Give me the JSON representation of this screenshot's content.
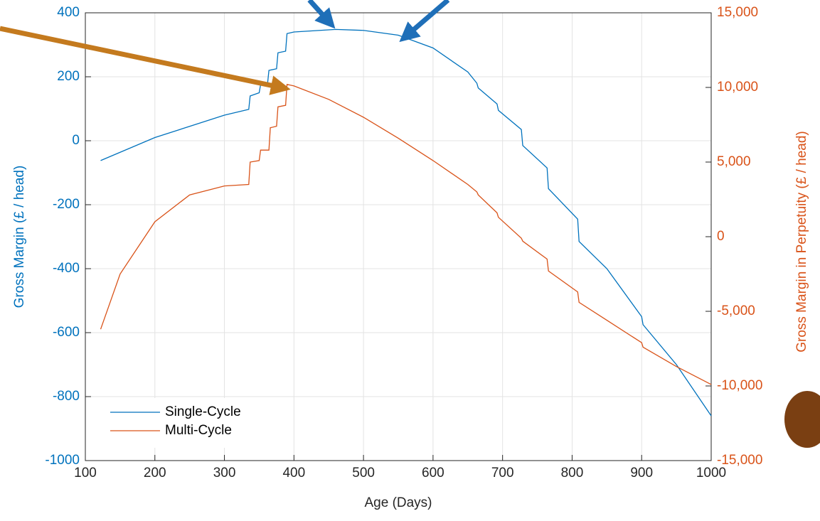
{
  "chart_data": {
    "type": "line",
    "xlabel": "Age (Days)",
    "ylabel": "Gross Margin (£ / head)",
    "y2label": "Gross Margin in Perpetuity (£ / head)",
    "xlim": [
      100,
      1000
    ],
    "xticks": [
      100,
      200,
      300,
      400,
      500,
      600,
      700,
      800,
      900,
      1000
    ],
    "ylim": [
      -1000,
      400
    ],
    "yticks": [
      -1000,
      -800,
      -600,
      -400,
      -200,
      0,
      200,
      400
    ],
    "y2lim": [
      -15000,
      15000
    ],
    "y2ticks": [
      {
        "value": -15000,
        "label": "-15,000"
      },
      {
        "value": -10000,
        "label": "-10,000"
      },
      {
        "value": -5000,
        "label": "-5,000"
      },
      0,
      {
        "value": 5000,
        "label": "5,000"
      },
      {
        "value": 10000,
        "label": "10,000"
      },
      {
        "value": 15000,
        "label": "15,000"
      }
    ],
    "grid": true,
    "legend": "lower left",
    "series": [
      {
        "name": "Single-Cycle",
        "color": "#0072bd",
        "x": [
          122,
          200,
          250,
          300,
          335,
          337,
          350,
          352,
          362,
          364,
          375,
          377,
          388,
          390,
          400,
          460,
          500,
          550,
          600,
          650,
          663,
          665,
          692,
          694,
          727,
          729,
          764,
          766,
          808,
          810,
          850,
          900,
          902,
          950,
          1000
        ],
        "values": [
          -62,
          10,
          45,
          80,
          98,
          140,
          150,
          175,
          178,
          220,
          225,
          275,
          280,
          335,
          340,
          348,
          345,
          330,
          290,
          215,
          180,
          165,
          115,
          95,
          35,
          -15,
          -85,
          -150,
          -245,
          -315,
          -400,
          -550,
          -575,
          -700,
          -860
        ]
      },
      {
        "name": "Multi-Cycle",
        "color": "#d95319",
        "axis": "y2",
        "x": [
          122,
          150,
          200,
          250,
          300,
          335,
          337,
          350,
          352,
          364,
          366,
          375,
          377,
          388,
          390,
          400,
          450,
          500,
          550,
          600,
          650,
          663,
          665,
          692,
          694,
          727,
          729,
          764,
          766,
          808,
          810,
          850,
          900,
          902,
          950,
          1000
        ],
        "values": [
          -6200,
          -2500,
          1000,
          2800,
          3400,
          3500,
          5000,
          5100,
          5800,
          5800,
          7300,
          7400,
          8700,
          8800,
          10200,
          10100,
          9200,
          8000,
          6600,
          5100,
          3500,
          3000,
          2800,
          1600,
          1300,
          -100,
          -300,
          -1500,
          -2300,
          -3700,
          -4400,
          -5600,
          -7100,
          -7400,
          -8700,
          -9900
        ]
      }
    ]
  }
}
